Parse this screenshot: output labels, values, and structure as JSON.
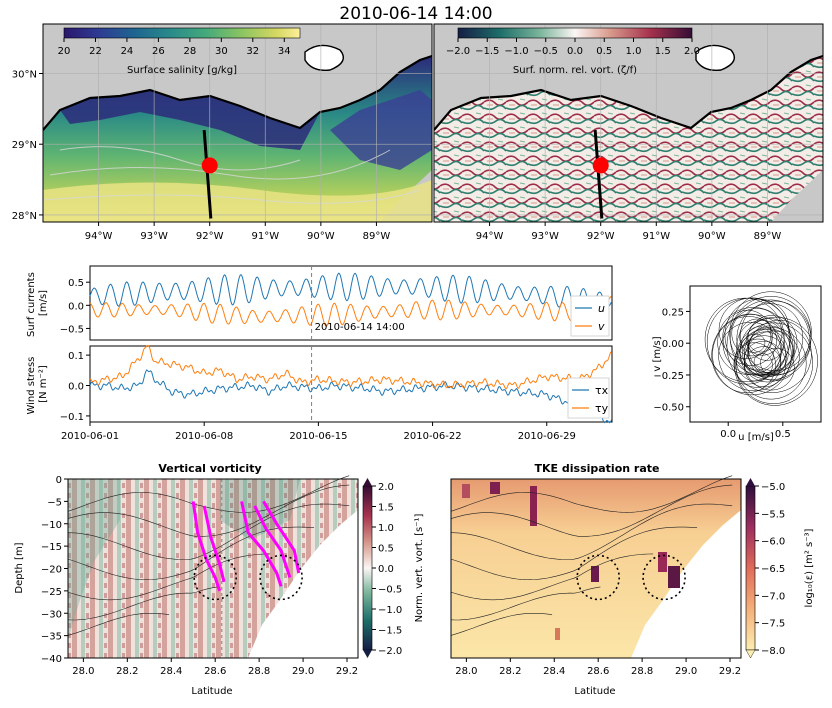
{
  "figure_title": "2010-06-14 14:00",
  "colors": {
    "land": "#c8c8c8",
    "u": "#1f77b4",
    "v": "#ff7f0e",
    "marker": "#ff0000",
    "section_paths": "#ff00ff",
    "grid": "#b0b0b0"
  },
  "chart_data": [
    {
      "id": "map_salinity",
      "type": "heatmap",
      "colorbar": {
        "label": "Surface salinity [g/kg]",
        "ticks": [
          "20",
          "22",
          "24",
          "26",
          "28",
          "30",
          "32",
          "34"
        ],
        "range": [
          20,
          35
        ],
        "colormap": "haline"
      },
      "x_ticks": [
        "94°W",
        "93°W",
        "92°W",
        "91°W",
        "90°W",
        "89°W"
      ],
      "y_ticks": [
        "30°N",
        "29°N",
        "28°N"
      ],
      "xlim": [
        -95,
        -88
      ],
      "ylim": [
        27.9,
        30.7
      ],
      "marker": {
        "lon": -92.0,
        "lat": 28.7
      },
      "section_line": [
        [
          -92.1,
          29.2
        ],
        [
          -91.98,
          27.95
        ]
      ]
    },
    {
      "id": "map_vorticity",
      "type": "heatmap",
      "colorbar": {
        "label": "Surf. norm. rel. vort. (ζ/f)",
        "ticks": [
          "−2.0",
          "−1.5",
          "−1.0",
          "−0.5",
          "0.0",
          "0.5",
          "1.0",
          "1.5",
          "2.0"
        ],
        "range": [
          -2,
          2
        ],
        "colormap": "curl"
      },
      "x_ticks": [
        "94°W",
        "93°W",
        "92°W",
        "91°W",
        "90°W",
        "89°W"
      ],
      "xlim": [
        -95,
        -88
      ],
      "ylim": [
        27.9,
        30.7
      ],
      "marker": {
        "lon": -92.0,
        "lat": 28.7
      },
      "section_line": [
        [
          -92.1,
          29.2
        ],
        [
          -91.98,
          27.95
        ]
      ]
    },
    {
      "id": "surface_currents",
      "type": "line",
      "ylabel": "Surf currents\n[m/s]",
      "y_ticks": [
        "0.5",
        "0.0",
        "−0.5"
      ],
      "ylim": [
        -0.75,
        0.85
      ],
      "x_range": [
        "2010-06-01",
        "2010-07-03"
      ],
      "marker_label": "2010-06-14 14:00",
      "marker_date": "2010-06-14 14:00",
      "series": [
        {
          "name": "u",
          "period_days": 1.0,
          "mean": [
            [
              0,
              0.2
            ],
            [
              5,
              0.3
            ],
            [
              10,
              0.35
            ],
            [
              15,
              0.4
            ],
            [
              20,
              0.4
            ],
            [
              25,
              0.3
            ],
            [
              30,
              0.15
            ],
            [
              32,
              0.1
            ]
          ],
          "amp": [
            [
              0,
              0.2
            ],
            [
              5,
              0.35
            ],
            [
              15,
              0.3
            ],
            [
              25,
              0.3
            ],
            [
              32,
              0.2
            ]
          ]
        },
        {
          "name": "v",
          "period_days": 1.0,
          "mean": [
            [
              0,
              -0.1
            ],
            [
              5,
              -0.1
            ],
            [
              10,
              -0.25
            ],
            [
              15,
              -0.2
            ],
            [
              20,
              -0.1
            ],
            [
              25,
              -0.1
            ],
            [
              30,
              -0.15
            ],
            [
              32,
              0.1
            ]
          ],
          "amp": [
            [
              0,
              0.15
            ],
            [
              5,
              0.2
            ],
            [
              15,
              0.25
            ],
            [
              25,
              0.2
            ],
            [
              32,
              0.2
            ]
          ]
        }
      ]
    },
    {
      "id": "wind_stress",
      "type": "line",
      "ylabel": "Wind stress\n[N m⁻²]",
      "y_ticks": [
        "0.1",
        "0.0",
        "−0.1"
      ],
      "ylim": [
        -0.12,
        0.13
      ],
      "x_ticks": [
        "2010-06-01",
        "2010-06-08",
        "2010-06-15",
        "2010-06-22",
        "2010-06-29"
      ],
      "x_range": [
        "2010-06-01",
        "2010-07-03"
      ],
      "marker_date": "2010-06-14 14:00",
      "series": [
        {
          "name": "τx",
          "points": [
            [
              0,
              0.0
            ],
            [
              1,
              0.0
            ],
            [
              2,
              -0.01
            ],
            [
              3,
              0.0
            ],
            [
              3.5,
              0.05
            ],
            [
              4,
              0.02
            ],
            [
              5,
              -0.02
            ],
            [
              6,
              -0.03
            ],
            [
              7,
              -0.02
            ],
            [
              8,
              -0.01
            ],
            [
              10,
              0.0
            ],
            [
              11,
              -0.02
            ],
            [
              12,
              0.0
            ],
            [
              14,
              -0.01
            ],
            [
              15,
              0.0
            ],
            [
              17,
              -0.01
            ],
            [
              18,
              -0.02
            ],
            [
              20,
              -0.01
            ],
            [
              22,
              0.0
            ],
            [
              24,
              -0.01
            ],
            [
              26,
              -0.02
            ],
            [
              28,
              -0.03
            ],
            [
              29,
              -0.05
            ],
            [
              30,
              -0.06
            ],
            [
              31,
              -0.1
            ],
            [
              32,
              -0.12
            ]
          ]
        },
        {
          "name": "τy",
          "points": [
            [
              0,
              0.01
            ],
            [
              1,
              0.02
            ],
            [
              2,
              0.03
            ],
            [
              3,
              0.09
            ],
            [
              3.5,
              0.13
            ],
            [
              4,
              0.08
            ],
            [
              5,
              0.07
            ],
            [
              6,
              0.06
            ],
            [
              7,
              0.04
            ],
            [
              8,
              0.05
            ],
            [
              9,
              0.02
            ],
            [
              10,
              0.03
            ],
            [
              11,
              0.02
            ],
            [
              12,
              0.04
            ],
            [
              13,
              0.01
            ],
            [
              14,
              0.02
            ],
            [
              16,
              0.01
            ],
            [
              18,
              0.02
            ],
            [
              20,
              0.01
            ],
            [
              22,
              0.0
            ],
            [
              24,
              0.01
            ],
            [
              26,
              0.0
            ],
            [
              28,
              0.03
            ],
            [
              30,
              0.02
            ],
            [
              31,
              0.05
            ],
            [
              32,
              0.1
            ]
          ]
        }
      ]
    },
    {
      "id": "hodograph",
      "type": "scatter",
      "xlabel": "u [m/s]",
      "ylabel": "v [m/s]",
      "x_ticks": [
        "0.0",
        "0.5"
      ],
      "y_ticks": [
        "0.25",
        "0.00",
        "−0.25",
        "−0.50"
      ],
      "xlim": [
        -0.35,
        0.85
      ],
      "ylim": [
        -0.62,
        0.45
      ],
      "trajectory": {
        "turns": 38,
        "center": [
          0.3,
          0.0
        ],
        "radius_u": 0.25,
        "radius_v": 0.22,
        "drift": 0.12
      }
    },
    {
      "id": "section_vorticity",
      "type": "heatmap",
      "title": "Vertical vorticity",
      "xlabel": "Latitude",
      "ylabel": "Depth [m]",
      "x_ticks": [
        "28.0",
        "28.2",
        "28.4",
        "28.6",
        "28.8",
        "29.0",
        "29.2"
      ],
      "y_ticks": [
        "0",
        "−5",
        "−10",
        "−15",
        "−20",
        "−25",
        "−30",
        "−35",
        "−40"
      ],
      "xlim": [
        27.93,
        29.25
      ],
      "ylim": [
        -40,
        0
      ],
      "colorbar": {
        "label": "Norm. vert. vort. [s⁻¹]",
        "ticks": [
          "2.0",
          "1.5",
          "1.0",
          "0.5",
          "0.0",
          "−0.5",
          "−1.0",
          "−1.5",
          "−2.0"
        ],
        "range": [
          -2,
          2
        ]
      },
      "marker_lat": 28.63,
      "circles": [
        [
          28.6,
          -22
        ],
        [
          28.9,
          -22
        ]
      ],
      "paths": [
        [
          [
            28.5,
            -5
          ],
          [
            28.52,
            -12
          ],
          [
            28.56,
            -18
          ],
          [
            28.6,
            -22
          ],
          [
            28.62,
            -25
          ]
        ],
        [
          [
            28.55,
            -6
          ],
          [
            28.58,
            -13
          ],
          [
            28.62,
            -19
          ],
          [
            28.64,
            -23
          ]
        ],
        [
          [
            28.72,
            -5
          ],
          [
            28.75,
            -12
          ],
          [
            28.82,
            -16
          ],
          [
            28.88,
            -21
          ],
          [
            28.9,
            -24
          ]
        ],
        [
          [
            28.78,
            -6
          ],
          [
            28.83,
            -11
          ],
          [
            28.9,
            -16
          ],
          [
            28.94,
            -22
          ]
        ],
        [
          [
            28.82,
            -5
          ],
          [
            28.88,
            -10
          ],
          [
            28.96,
            -16
          ],
          [
            28.98,
            -21
          ]
        ]
      ]
    },
    {
      "id": "section_dissipation",
      "type": "heatmap",
      "title": "TKE dissipation rate",
      "xlabel": "Latitude",
      "x_ticks": [
        "28.0",
        "28.2",
        "28.4",
        "28.6",
        "28.8",
        "29.0",
        "29.2"
      ],
      "xlim": [
        27.93,
        29.25
      ],
      "ylim": [
        -40,
        0
      ],
      "colorbar": {
        "label": "log₁₀(ε) [m² s⁻³]",
        "ticks": [
          "−5.0",
          "−5.5",
          "−6.0",
          "−6.5",
          "−7.0",
          "−7.5",
          "−8.0"
        ],
        "range": [
          -8,
          -5
        ]
      },
      "circles": [
        [
          28.6,
          -22
        ],
        [
          28.9,
          -22
        ]
      ]
    }
  ]
}
